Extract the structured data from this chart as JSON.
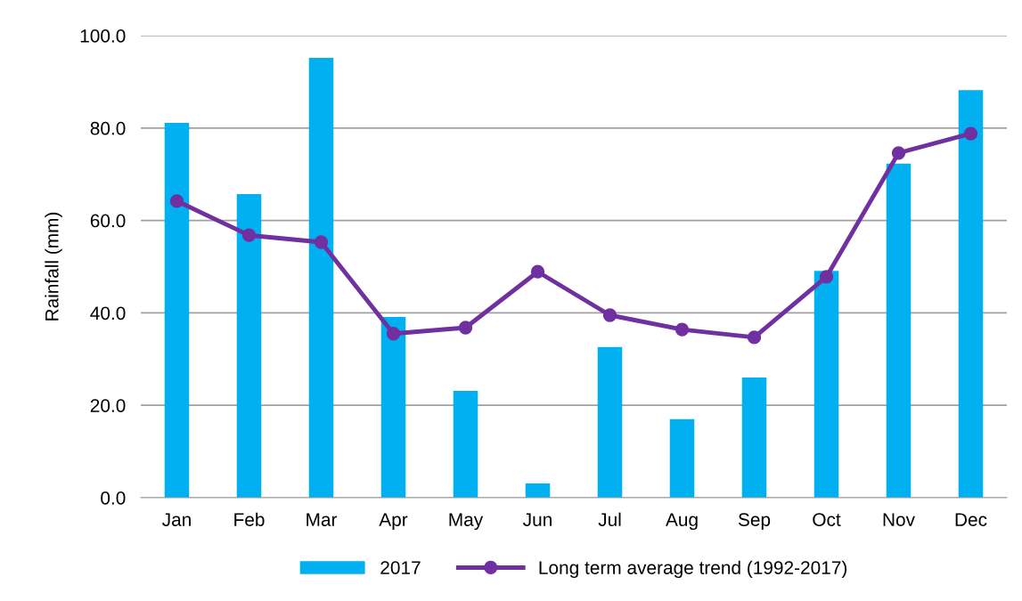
{
  "chart_data": {
    "type": "bar",
    "ylabel": "Rainfall (mm)",
    "categories": [
      "Jan",
      "Feb",
      "Mar",
      "Apr",
      "May",
      "Jun",
      "Jul",
      "Aug",
      "Sep",
      "Oct",
      "Nov",
      "Dec"
    ],
    "series": [
      {
        "name": "2017",
        "color": "#00b0f0",
        "values": [
          81.1,
          65.7,
          95.2,
          39.1,
          23.1,
          3.1,
          32.6,
          17.0,
          26.0,
          49.1,
          72.3,
          88.2
        ]
      },
      {
        "name": "Long term average trend (1992-2017)",
        "type": "line",
        "color": "#7030a0",
        "marker": "circle",
        "line_style": "solid",
        "values": [
          64.2,
          56.8,
          55.3,
          35.5,
          36.8,
          48.9,
          39.5,
          36.4,
          34.7,
          47.8,
          74.6,
          78.8
        ]
      }
    ],
    "ylim": [
      0,
      100
    ],
    "yticks": [
      {
        "value": 0,
        "label": "0.0"
      },
      {
        "value": 20,
        "label": "20.0"
      },
      {
        "value": 40,
        "label": "40.0"
      },
      {
        "value": 60,
        "label": "60.0"
      },
      {
        "value": 80,
        "label": "80.0"
      },
      {
        "value": 100,
        "label": "100.0"
      }
    ],
    "grid": "y",
    "legend": "bottom"
  }
}
